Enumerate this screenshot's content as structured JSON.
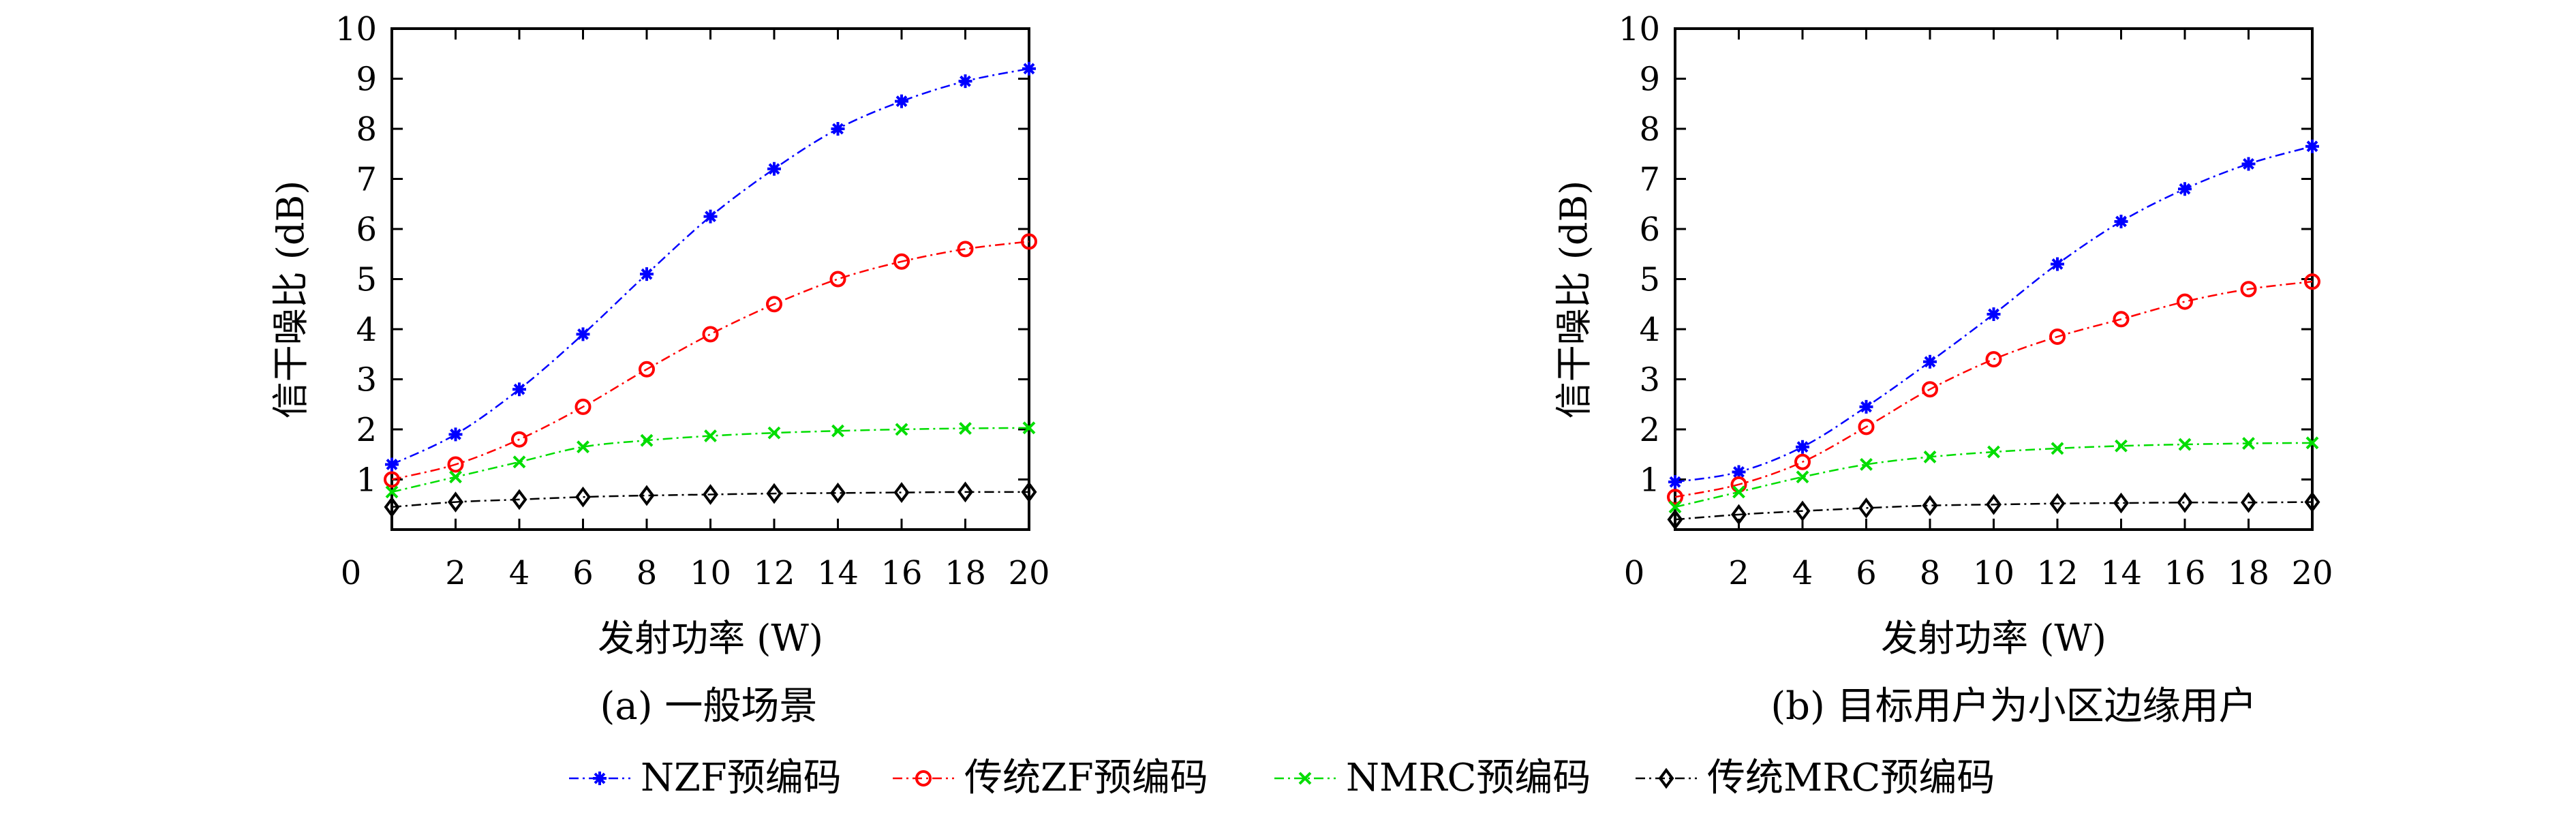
{
  "chart_data": [
    {
      "type": "line",
      "caption": "(a) 一般场景",
      "xlabel": "发射功率 (W)",
      "ylabel": "信干噪比 (dB)",
      "xlim": [
        0,
        20
      ],
      "ylim": [
        0,
        10
      ],
      "xticks": [
        "0",
        "2",
        "4",
        "6",
        "8",
        "10",
        "12",
        "14",
        "16",
        "18",
        "20"
      ],
      "yticks": [
        "1",
        "2",
        "3",
        "4",
        "5",
        "6",
        "7",
        "8",
        "9",
        "10"
      ],
      "x": [
        0,
        2,
        4,
        6,
        8,
        10,
        12,
        14,
        16,
        18,
        20
      ],
      "series": [
        {
          "name": "NZF预编码",
          "color": "#0000ff",
          "marker": "asterisk",
          "values": [
            1.3,
            1.9,
            2.8,
            3.9,
            5.1,
            6.25,
            7.2,
            8.0,
            8.55,
            8.95,
            9.2
          ]
        },
        {
          "name": "传统ZF预编码",
          "color": "#ff0000",
          "marker": "circle",
          "values": [
            1.0,
            1.3,
            1.8,
            2.45,
            3.2,
            3.9,
            4.5,
            5.0,
            5.35,
            5.6,
            5.75
          ]
        },
        {
          "name": "NMRC预编码",
          "color": "#00dd00",
          "marker": "cross",
          "values": [
            0.75,
            1.05,
            1.35,
            1.65,
            1.78,
            1.87,
            1.93,
            1.97,
            2.0,
            2.02,
            2.03
          ]
        },
        {
          "name": "传统MRC预编码",
          "color": "#000000",
          "marker": "diamond",
          "values": [
            0.45,
            0.55,
            0.6,
            0.65,
            0.68,
            0.7,
            0.72,
            0.73,
            0.74,
            0.75,
            0.75
          ]
        }
      ]
    },
    {
      "type": "line",
      "caption": "(b) 目标用户为小区边缘用户",
      "xlabel": "发射功率 (W)",
      "ylabel": "信干噪比 (dB)",
      "xlim": [
        0,
        20
      ],
      "ylim": [
        0,
        10
      ],
      "xticks": [
        "0",
        "2",
        "4",
        "6",
        "8",
        "10",
        "12",
        "14",
        "16",
        "18",
        "20"
      ],
      "yticks": [
        "1",
        "2",
        "3",
        "4",
        "5",
        "6",
        "7",
        "8",
        "9",
        "10"
      ],
      "x": [
        0,
        2,
        4,
        6,
        8,
        10,
        12,
        14,
        16,
        18,
        20
      ],
      "series": [
        {
          "name": "NZF预编码",
          "color": "#0000ff",
          "marker": "asterisk",
          "values": [
            0.95,
            1.15,
            1.65,
            2.45,
            3.35,
            4.3,
            5.3,
            6.15,
            6.8,
            7.3,
            7.65
          ]
        },
        {
          "name": "传统ZF预编码",
          "color": "#ff0000",
          "marker": "circle",
          "values": [
            0.65,
            0.9,
            1.35,
            2.05,
            2.8,
            3.4,
            3.85,
            4.2,
            4.55,
            4.8,
            4.95
          ]
        },
        {
          "name": "NMRC预编码",
          "color": "#00dd00",
          "marker": "cross",
          "values": [
            0.45,
            0.75,
            1.05,
            1.3,
            1.45,
            1.55,
            1.62,
            1.67,
            1.7,
            1.72,
            1.73
          ]
        },
        {
          "name": "传统MRC预编码",
          "color": "#000000",
          "marker": "diamond",
          "values": [
            0.2,
            0.3,
            0.37,
            0.43,
            0.48,
            0.5,
            0.52,
            0.53,
            0.54,
            0.54,
            0.55
          ]
        }
      ]
    }
  ],
  "legend": {
    "position": "bottom",
    "items": [
      "NZF预编码",
      "传统ZF预编码",
      "NMRC预编码",
      "传统MRC预编码"
    ]
  }
}
